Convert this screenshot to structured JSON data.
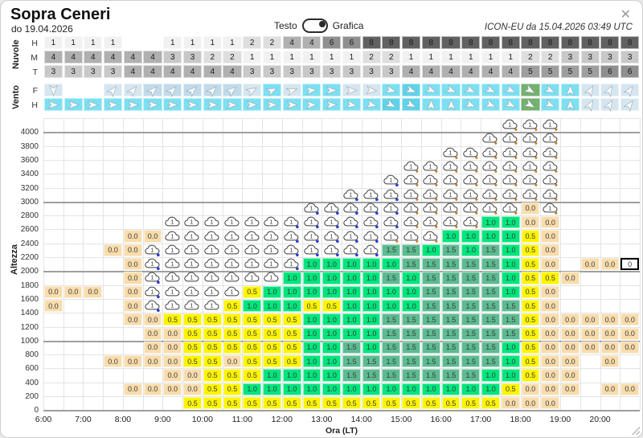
{
  "window": {
    "title": "Sopra Ceneri",
    "subtitle": "do 19.04.2026",
    "model_run": "ICON-EU da 15.04.2026 03:49 UTC",
    "close_icon": "✕"
  },
  "toggle": {
    "left_label": "Testo",
    "right_label": "Grafica",
    "selected": "Grafica"
  },
  "cloud_section": {
    "group_label": "Nuvole",
    "rows": [
      {
        "label": "H",
        "values": [
          "1",
          "1",
          "1",
          "1",
          "",
          "",
          "1",
          "1",
          "1",
          "1",
          "2",
          "2",
          "4",
          "4",
          "6",
          "6",
          "8",
          "8",
          "8",
          "8",
          "8",
          "8",
          "8",
          "8",
          "8",
          "8",
          "8",
          "8",
          "8",
          "8"
        ]
      },
      {
        "label": "M",
        "values": [
          "4",
          "4",
          "4",
          "4",
          "4",
          "4",
          "3",
          "3",
          "2",
          "2",
          "1",
          "1",
          "1",
          "1",
          "1",
          "1",
          "2",
          "2",
          "1",
          "1",
          "1",
          "1",
          "1",
          "1",
          "2",
          "2",
          "3",
          "3",
          "3",
          "3"
        ]
      },
      {
        "label": "T",
        "values": [
          "3",
          "3",
          "3",
          "3",
          "4",
          "4",
          "4",
          "4",
          "4",
          "4",
          "3",
          "3",
          "3",
          "3",
          "3",
          "3",
          "3",
          "3",
          "4",
          "4",
          "4",
          "4",
          "4",
          "4",
          "5",
          "5",
          "5",
          "5",
          "6",
          "6"
        ]
      }
    ]
  },
  "wind_section": {
    "group_label": "Vento",
    "rows": [
      {
        "label": "F",
        "cells": [
          [
            90,
            "pale"
          ],
          [
            null,
            "white"
          ],
          [
            null,
            "white"
          ],
          [
            -50,
            "pale"
          ],
          [
            -50,
            "pale"
          ],
          [
            -45,
            "lblue"
          ],
          [
            -45,
            "lblue"
          ],
          [
            -45,
            "lblue"
          ],
          [
            -45,
            "lblue"
          ],
          [
            -40,
            "lblue"
          ],
          [
            -30,
            "pale"
          ],
          [
            -25,
            "cyan"
          ],
          [
            -20,
            "pale"
          ],
          [
            -5,
            "cyan"
          ],
          [
            0,
            "cyan"
          ],
          [
            0,
            "pale"
          ],
          [
            5,
            "pale"
          ],
          [
            15,
            "cyan"
          ],
          [
            20,
            "teal"
          ],
          [
            25,
            "cyan"
          ],
          [
            25,
            "cyan"
          ],
          [
            25,
            "cyan"
          ],
          [
            25,
            "cyan"
          ],
          [
            25,
            "cyan"
          ],
          [
            30,
            "green"
          ],
          [
            25,
            "cyan"
          ],
          [
            -90,
            "cyan"
          ],
          [
            -60,
            "pale"
          ],
          [
            -60,
            "pale"
          ],
          [
            -55,
            "pale"
          ]
        ]
      },
      {
        "label": "H",
        "cells": [
          [
            0,
            "cyan"
          ],
          [
            0,
            "cyan"
          ],
          [
            0,
            "cyan"
          ],
          [
            0,
            "cyan"
          ],
          [
            0,
            "cyan"
          ],
          [
            0,
            "cyan"
          ],
          [
            0,
            "cyan"
          ],
          [
            0,
            "cyan"
          ],
          [
            0,
            "cyan"
          ],
          [
            0,
            "cyan"
          ],
          [
            0,
            "cyan"
          ],
          [
            0,
            "cyan"
          ],
          [
            0,
            "cyan"
          ],
          [
            0,
            "cyan"
          ],
          [
            0,
            "cyan"
          ],
          [
            10,
            "cyan"
          ],
          [
            15,
            "cyan"
          ],
          [
            25,
            "teal"
          ],
          [
            25,
            "teal"
          ],
          [
            -90,
            "cyan"
          ],
          [
            -90,
            "cyan"
          ],
          [
            20,
            "cyan"
          ],
          [
            20,
            "cyan"
          ],
          [
            25,
            "cyan"
          ],
          [
            30,
            "green"
          ],
          [
            25,
            "cyan"
          ],
          [
            -90,
            "cyan"
          ],
          [
            -60,
            "pale"
          ],
          [
            -60,
            "pale"
          ],
          [
            -55,
            "pale"
          ]
        ]
      }
    ]
  },
  "chart_data": {
    "type": "heatmap",
    "ylabel": "Altezza",
    "xlabel": "Ora (LT)",
    "y_ticks": [
      "4000",
      "3800",
      "3600",
      "3400",
      "3200",
      "3000",
      "2800",
      "2600",
      "2400",
      "2200",
      "2000",
      "1800",
      "1600",
      "1400",
      "1200",
      "1000",
      "800",
      "600",
      "400",
      "200",
      "0"
    ],
    "x_ticks": [
      "6:00",
      "7:00",
      "8:00",
      "9:00",
      "10:00",
      "11:00",
      "12:00",
      "13:00",
      "14:00",
      "15:00",
      "16:00",
      "17:00",
      "18:00",
      "19:00",
      "20:00"
    ],
    "cloud_symbol_text": "1",
    "cell_codes": {
      "C": "cloud-icon",
      "CB": "cloud-icon-blue-drizzle",
      "CO": "cloud-icon-orange-drizzle",
      "0#": "highlighted-zero-cell"
    },
    "grid": [
      [
        "",
        "",
        "",
        "",
        "",
        "",
        "",
        "",
        "",
        "",
        "",
        "",
        "",
        "",
        "",
        "",
        "",
        "",
        "",
        "",
        "",
        "",
        "",
        "CO",
        "CO",
        "CO",
        "",
        "",
        "",
        ""
      ],
      [
        "",
        "",
        "",
        "",
        "",
        "",
        "",
        "",
        "",
        "",
        "",
        "",
        "",
        "",
        "",
        "",
        "",
        "",
        "",
        "",
        "",
        "",
        "CO",
        "CO",
        "CO",
        "CO",
        "",
        "",
        "",
        ""
      ],
      [
        "",
        "",
        "",
        "",
        "",
        "",
        "",
        "",
        "",
        "",
        "",
        "",
        "",
        "",
        "",
        "",
        "",
        "",
        "",
        "",
        "CO",
        "CO",
        "CO",
        "CO",
        "CO",
        "CO",
        "",
        "",
        "",
        ""
      ],
      [
        "",
        "",
        "",
        "",
        "",
        "",
        "",
        "",
        "",
        "",
        "",
        "",
        "",
        "",
        "",
        "",
        "",
        "",
        "CO",
        "CO",
        "CO",
        "CO",
        "CO",
        "CO",
        "CO",
        "CO",
        "",
        "",
        "",
        ""
      ],
      [
        "",
        "",
        "",
        "",
        "",
        "",
        "",
        "",
        "",
        "",
        "",
        "",
        "",
        "",
        "",
        "",
        "",
        "CB",
        "CO",
        "CO",
        "CO",
        "CO",
        "CO",
        "CO",
        "CO",
        "CO",
        "",
        "",
        "",
        ""
      ],
      [
        "",
        "",
        "",
        "",
        "",
        "",
        "",
        "",
        "",
        "",
        "",
        "",
        "",
        "",
        "",
        "CB",
        "CB",
        "CB",
        "CO",
        "CO",
        "CO",
        "CO",
        "CO",
        "CO",
        "CO",
        "CO",
        "",
        "",
        "",
        ""
      ],
      [
        "",
        "",
        "",
        "",
        "",
        "",
        "",
        "",
        "",
        "",
        "",
        "",
        "",
        "CB",
        "CB",
        "CB",
        "CB",
        "CB",
        "CO",
        "CO",
        "CO",
        "CO",
        "CO",
        "CO",
        "0.0",
        "CO",
        "",
        "",
        "",
        ""
      ],
      [
        "",
        "",
        "",
        "",
        "",
        "",
        "C",
        "C",
        "C",
        "C",
        "C",
        "C",
        "CB",
        "CB",
        "CB",
        "CB",
        "CB",
        "CB",
        "CO",
        "CO",
        "CO",
        "CO",
        "1.0",
        "1.0",
        "0.0",
        "0.0",
        "",
        "",
        "",
        ""
      ],
      [
        "",
        "",
        "",
        "",
        "0.0",
        "0.0",
        "C",
        "C",
        "C",
        "C",
        "C",
        "C",
        "CB",
        "CB",
        "CB",
        "CB",
        "CB",
        "CO",
        "CO",
        "CO",
        "1.0",
        "1.0",
        "1.0",
        "1.0",
        "0.5",
        "0.0",
        "",
        "",
        "",
        ""
      ],
      [
        "",
        "",
        "",
        "0.0",
        "0.0",
        "CB",
        "C",
        "C",
        "C",
        "C",
        "C",
        "C",
        "CB",
        "CB",
        "CB",
        "CB",
        "CB",
        "1.5",
        "1.5",
        "1.0",
        "1.5",
        "1.0",
        "1.5",
        "1.0",
        "0.5",
        "0.0",
        "",
        "",
        "",
        ""
      ],
      [
        "",
        "",
        "",
        "",
        "0.0",
        "CB",
        "C",
        "C",
        "C",
        "C",
        "C",
        "C",
        "CB",
        "1.0",
        "1.0",
        "1.0",
        "1.0",
        "1.0",
        "1.5",
        "1.5",
        "1.5",
        "1.5",
        "1.5",
        "1.0",
        "0.5",
        "0.0",
        "",
        "0.0",
        "0.0",
        "0#"
      ],
      [
        "",
        "",
        "",
        "",
        "0.0",
        "CB",
        "C",
        "C",
        "C",
        "C",
        "C",
        "C",
        "1.0",
        "1.0",
        "1.0",
        "1.0",
        "1.0",
        "1.5",
        "1.0",
        "1.5",
        "1.5",
        "1.5",
        "1.5",
        "1.0",
        "0.5",
        "0.5",
        "0.0",
        "",
        "",
        ""
      ],
      [
        "0.0",
        "0.0",
        "0.0",
        "",
        "0.0",
        "CB",
        "C",
        "C",
        "C",
        "C",
        "0.5",
        "1.0",
        "1.0",
        "1.0",
        "1.0",
        "1.0",
        "1.0",
        "1.0",
        "1.0",
        "1.5",
        "1.5",
        "1.5",
        "1.5",
        "1.0",
        "0.5",
        "0.0",
        "",
        "",
        "",
        ""
      ],
      [
        "0.0",
        "",
        "",
        "",
        "0.0",
        "CB",
        "C",
        "C",
        "C",
        "0.5",
        "1.0",
        "1.0",
        "1.0",
        "0.5",
        "0.5",
        "1.0",
        "1.0",
        "1.0",
        "1.0",
        "1.5",
        "1.5",
        "1.5",
        "1.5",
        "1.5",
        "0.5",
        "0.0",
        "",
        "",
        "",
        ""
      ],
      [
        "",
        "",
        "",
        "",
        "0.0",
        "0.0",
        "0.5",
        "0.5",
        "0.5",
        "0.5",
        "0.5",
        "0.5",
        "0.5",
        "1.0",
        "1.0",
        "1.0",
        "1.0",
        "1.5",
        "1.5",
        "1.5",
        "1.5",
        "1.5",
        "1.5",
        "1.5",
        "0.5",
        "0.0",
        "0.0",
        "0.0",
        "0.0",
        "0.0"
      ],
      [
        "",
        "",
        "",
        "",
        "",
        "0.0",
        "0.0",
        "0.5",
        "0.5",
        "0.5",
        "0.5",
        "0.5",
        "0.5",
        "1.0",
        "1.0",
        "1.0",
        "1.0",
        "1.5",
        "1.5",
        "1.5",
        "1.5",
        "1.5",
        "1.5",
        "1.5",
        "0.5",
        "0.0",
        "0.0",
        "0.0",
        "0.0",
        "0.0"
      ],
      [
        "",
        "",
        "",
        "",
        "",
        "0.0",
        "0.0",
        "0.5",
        "0.5",
        "0.5",
        "0.5",
        "0.5",
        "0.5",
        "1.0",
        "1.0",
        "1.5",
        "1.0",
        "1.5",
        "1.5",
        "1.5",
        "1.5",
        "1.5",
        "1.5",
        "1.0",
        "0.5",
        "0.0",
        "0.0",
        "0.0",
        "0.0",
        "0.0"
      ],
      [
        "",
        "",
        "",
        "0.0",
        "0.0",
        "0.0",
        "0.0",
        "0.5",
        "0.5",
        "0.0",
        "0.5",
        "0.5",
        "0.5",
        "1.0",
        "1.0",
        "1.5",
        "1.5",
        "1.5",
        "1.5",
        "1.5",
        "1.5",
        "1.5",
        "1.5",
        "1.0",
        "0.5",
        "0.0",
        "0.0",
        "",
        "0.0",
        ""
      ],
      [
        "",
        "",
        "",
        "",
        "",
        "",
        "0.0",
        "0.0",
        "0.5",
        "0.5",
        "0.5",
        "1.0",
        "1.0",
        "1.0",
        "1.0",
        "1.5",
        "1.5",
        "1.5",
        "1.5",
        "1.5",
        "1.5",
        "1.5",
        "1.0",
        "1.0",
        "0.5",
        "0.0",
        "0.0",
        "",
        "",
        ""
      ],
      [
        "",
        "",
        "",
        "",
        "0.0",
        "0.0",
        "0.0",
        "0.0",
        "0.5",
        "0.5",
        "1.0",
        "1.0",
        "1.0",
        "1.0",
        "1.0",
        "1.0",
        "1.0",
        "1.0",
        "1.0",
        "1.0",
        "1.0",
        "1.0",
        "1.0",
        "0.5",
        "0.0",
        "0.0",
        "0.0",
        "",
        "0.0",
        "0.0"
      ],
      [
        "",
        "",
        "",
        "",
        "",
        "",
        "",
        "0.5",
        "0.5",
        "0.5",
        "0.5",
        "0.5",
        "0.5",
        "0.5",
        "0.5",
        "0.5",
        "0.5",
        "0.5",
        "0.5",
        "0.5",
        "0.5",
        "0.5",
        "0.5",
        "0.0",
        "0.0",
        "0.0",
        "",
        "",
        "",
        ""
      ]
    ]
  },
  "colors": {
    "value_cells": {
      "0.0": "#f8dcab",
      "0.5": "#fcf400",
      "1.0": "#00e57c",
      "1.5": "#5cbb91"
    },
    "cloud_cover": {
      "1": "#f1f1f1",
      "2": "#dedede",
      "3": "#c8c8c8",
      "4": "#b0b0b0",
      "5": "#9e9e9e",
      "6": "#8f8f8f",
      "8": "#616161"
    },
    "wind": {
      "white": "#ffffff",
      "pale": "#d6e6f0",
      "lblue": "#c0dbea",
      "cyan": "#7ce0f2",
      "teal": "#5ed3ea",
      "green": "#74b06e"
    },
    "drizzle_blue": "#2b3fd4",
    "drizzle_orange": "#c87d28"
  }
}
